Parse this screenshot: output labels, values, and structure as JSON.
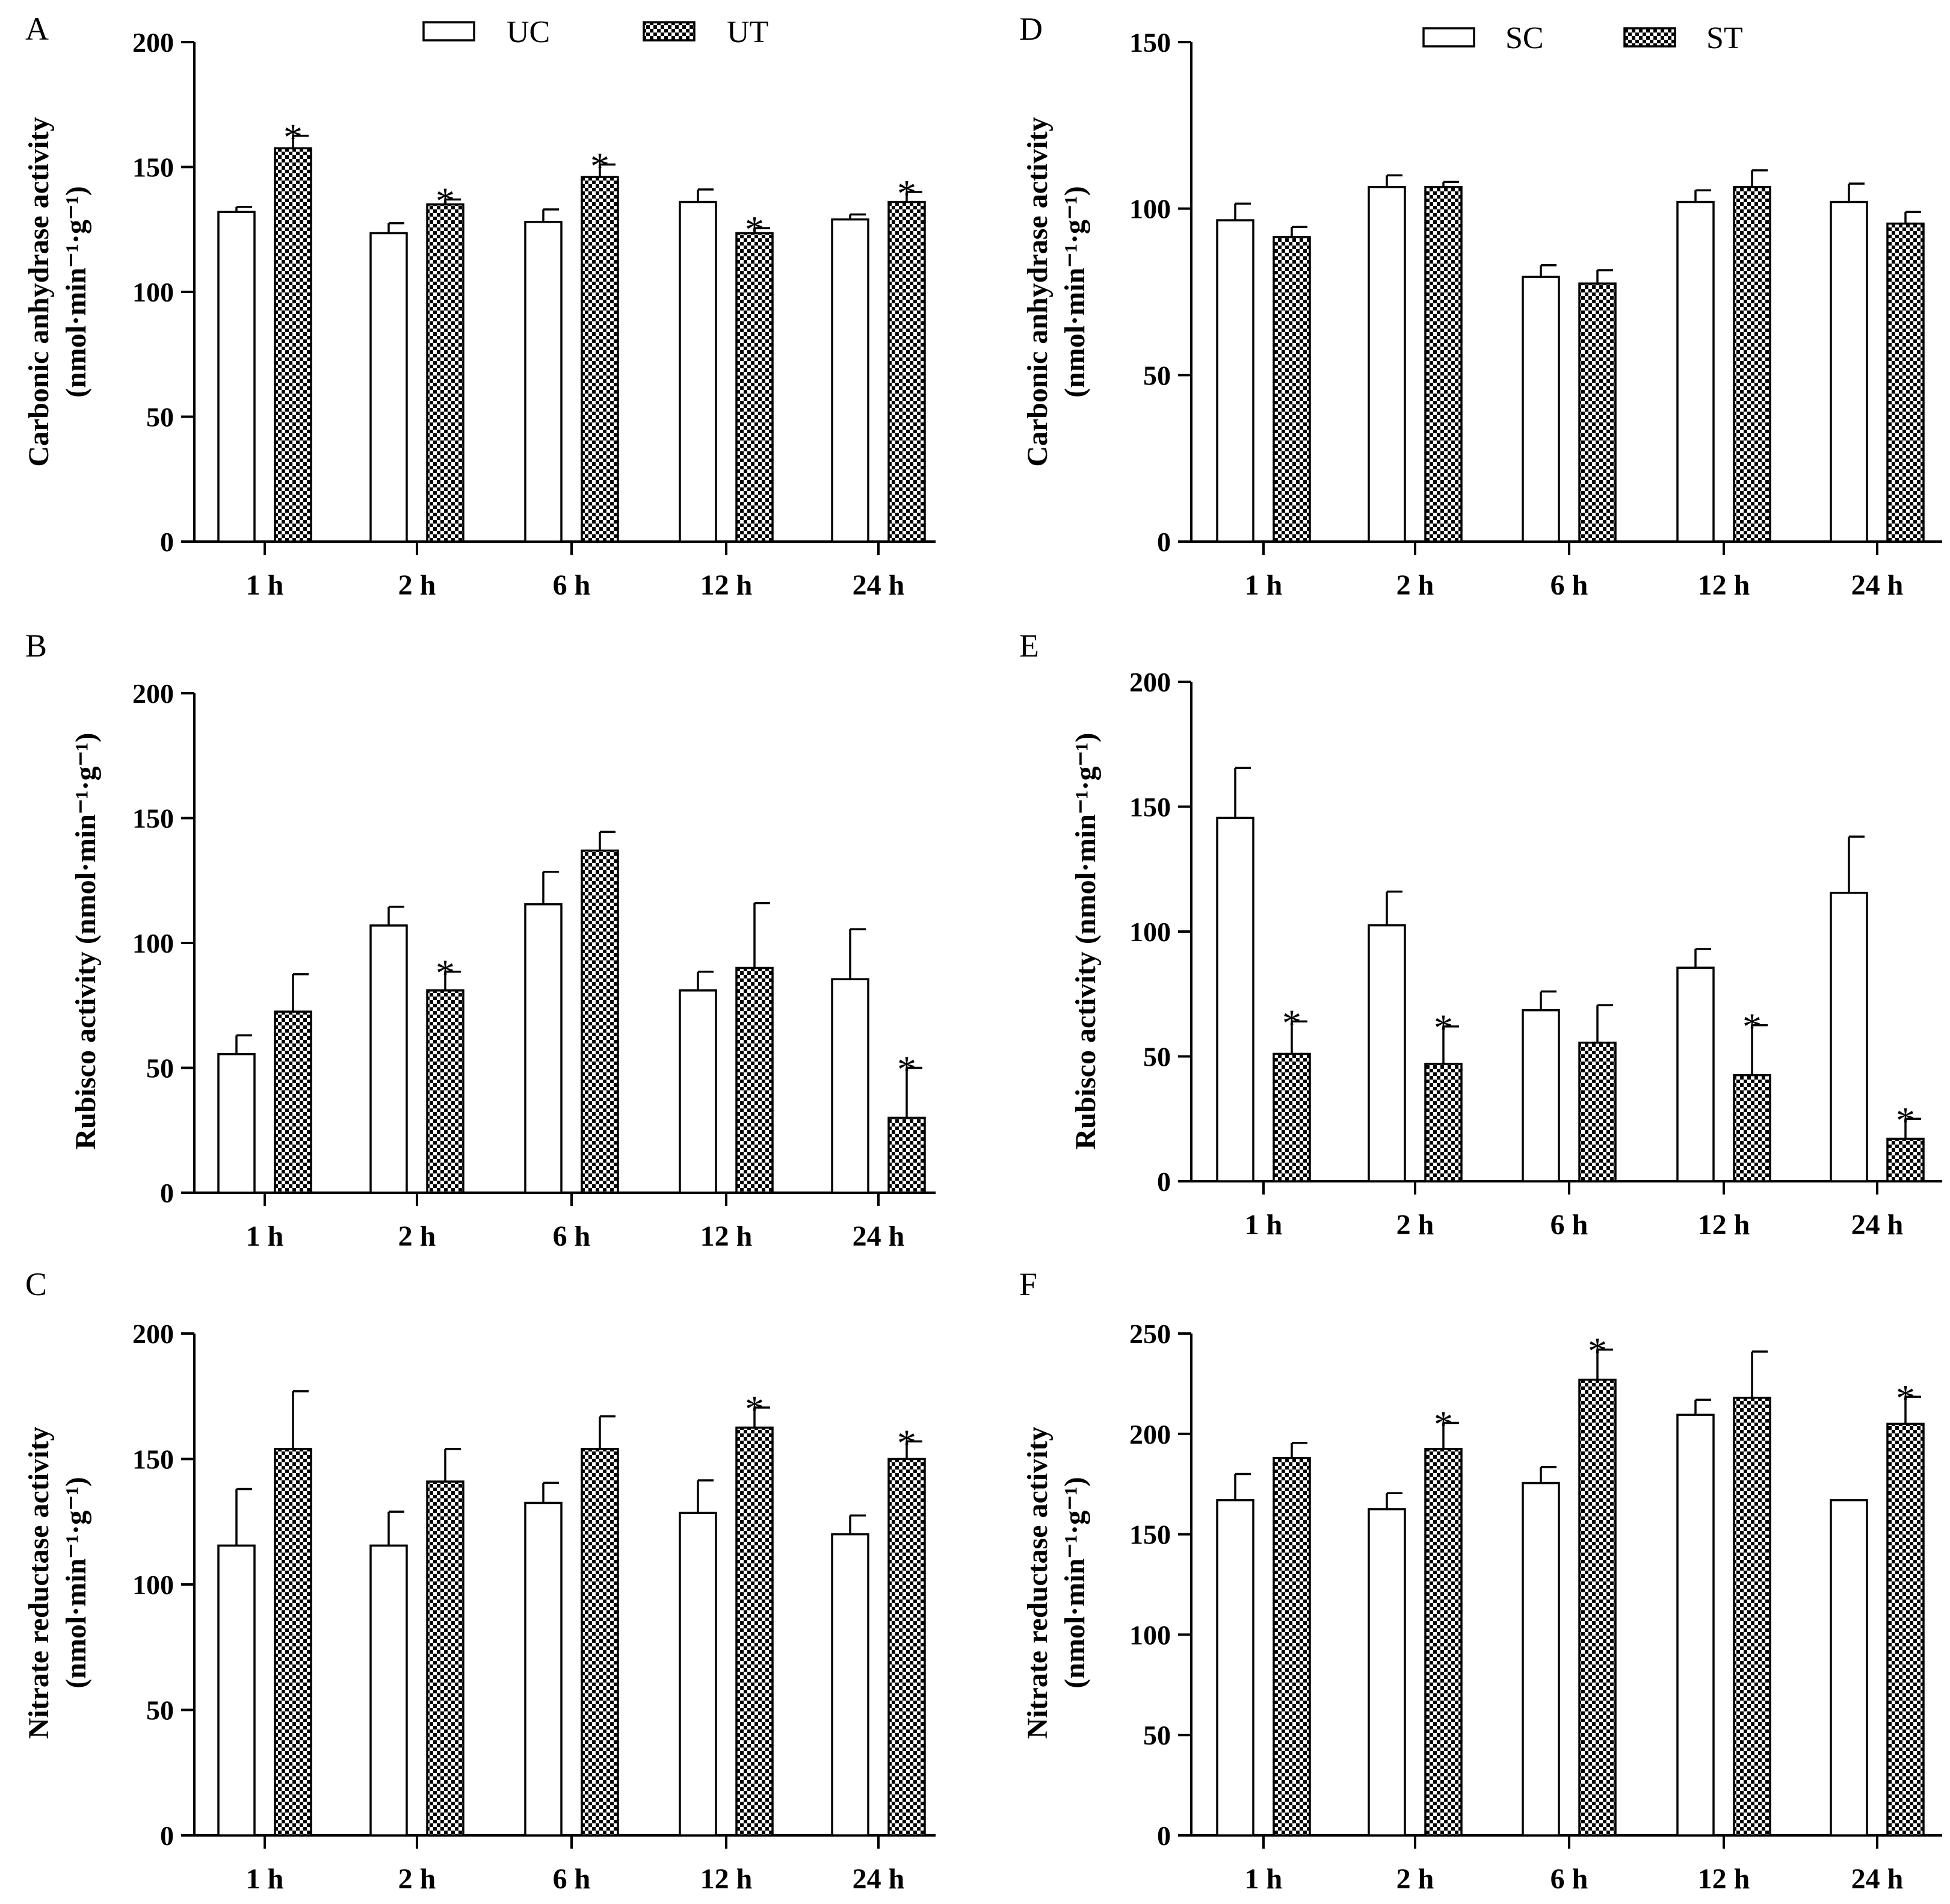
{
  "legend_left": {
    "control": "UC",
    "treatment": "UT"
  },
  "legend_right": {
    "control": "SC",
    "treatment": "ST"
  },
  "colors": {
    "control_fill": "#ffffff",
    "treatment_pattern": "checkered black/white",
    "stroke": "#000000"
  },
  "chart_data": [
    {
      "panel": "A",
      "type": "bar",
      "ylabel": [
        "Carbonic anhydrase activity",
        "(nmol·min⁻¹·g⁻¹)"
      ],
      "ylim": [
        0,
        200
      ],
      "yticks": [
        0,
        50,
        100,
        150,
        200
      ],
      "categories": [
        "1 h",
        "2 h",
        "6 h",
        "12 h",
        "24 h"
      ],
      "series": [
        {
          "name": "UC",
          "values": [
            132,
            123.5,
            128,
            136,
            129
          ],
          "errors": [
            2,
            4,
            5,
            5,
            2
          ],
          "significant": [
            false,
            false,
            false,
            false,
            false
          ]
        },
        {
          "name": "UT",
          "values": [
            157.5,
            135,
            146,
            123.5,
            136
          ],
          "errors": [
            5,
            2,
            5,
            2,
            4
          ],
          "significant": [
            true,
            true,
            true,
            true,
            true
          ]
        }
      ]
    },
    {
      "panel": "B",
      "type": "bar",
      "ylabel": [
        "Rubisco activity (nmol·min⁻¹·g⁻¹)"
      ],
      "ylim": [
        0,
        200
      ],
      "yticks": [
        0,
        50,
        100,
        150,
        200
      ],
      "categories": [
        "1 h",
        "2 h",
        "6 h",
        "12 h",
        "24 h"
      ],
      "series": [
        {
          "name": "UC",
          "values": [
            55.5,
            107,
            115.5,
            81,
            85.5
          ],
          "errors": [
            7.5,
            7.5,
            13,
            7.5,
            20
          ],
          "significant": [
            false,
            false,
            false,
            false,
            false
          ]
        },
        {
          "name": "UT",
          "values": [
            72.5,
            81,
            137,
            90,
            30
          ],
          "errors": [
            15,
            7.5,
            7.5,
            26,
            20
          ],
          "significant": [
            false,
            true,
            false,
            false,
            true
          ]
        }
      ]
    },
    {
      "panel": "C",
      "type": "bar",
      "ylabel": [
        "Nitrate reductase activity",
        "(nmol·min⁻¹·g⁻¹)"
      ],
      "ylim": [
        0,
        200
      ],
      "yticks": [
        0,
        50,
        100,
        150,
        200
      ],
      "categories": [
        "1 h",
        "2 h",
        "6 h",
        "12 h",
        "24 h"
      ],
      "series": [
        {
          "name": "UC",
          "values": [
            115.5,
            115.5,
            132.5,
            128.5,
            120
          ],
          "errors": [
            22.5,
            13.5,
            8,
            13,
            7.5
          ],
          "significant": [
            false,
            false,
            false,
            false,
            false
          ]
        },
        {
          "name": "UT",
          "values": [
            154,
            141,
            154,
            162.5,
            150
          ],
          "errors": [
            23,
            13,
            13,
            8,
            7
          ],
          "significant": [
            false,
            false,
            false,
            true,
            true
          ]
        }
      ]
    },
    {
      "panel": "D",
      "type": "bar",
      "ylabel": [
        "Carbonic anhydrase activity",
        "(nmol·min⁻¹·g⁻¹)"
      ],
      "ylim": [
        0,
        150
      ],
      "yticks": [
        0,
        50,
        100,
        150
      ],
      "categories": [
        "1 h",
        "2 h",
        "6 h",
        "12 h",
        "24 h"
      ],
      "series": [
        {
          "name": "SC",
          "values": [
            96.5,
            106.5,
            79.5,
            102,
            102
          ],
          "errors": [
            5,
            3.5,
            3.5,
            3.5,
            5.5
          ],
          "significant": [
            false,
            false,
            false,
            false,
            false
          ]
        },
        {
          "name": "ST",
          "values": [
            91.5,
            106.5,
            77.5,
            106.5,
            95.5
          ],
          "errors": [
            3,
            1.5,
            4,
            5,
            3.5
          ],
          "significant": [
            false,
            false,
            false,
            false,
            false
          ]
        }
      ]
    },
    {
      "panel": "E",
      "type": "bar",
      "ylabel": [
        "Rubisco activity (nmol·min⁻¹·g⁻¹)"
      ],
      "ylim": [
        0,
        200
      ],
      "yticks": [
        0,
        50,
        100,
        150,
        200
      ],
      "categories": [
        "1 h",
        "2 h",
        "6 h",
        "12 h",
        "24 h"
      ],
      "series": [
        {
          "name": "SC",
          "values": [
            145.5,
            102.5,
            68.5,
            85.5,
            115.5
          ],
          "errors": [
            20,
            13.5,
            7.5,
            7.5,
            22.5
          ],
          "significant": [
            false,
            false,
            false,
            false,
            false
          ]
        },
        {
          "name": "ST",
          "values": [
            51,
            47,
            55.5,
            42.5,
            17
          ],
          "errors": [
            13,
            15,
            15,
            20,
            8
          ],
          "significant": [
            true,
            true,
            false,
            true,
            true
          ]
        }
      ]
    },
    {
      "panel": "F",
      "type": "bar",
      "ylabel": [
        "Nitrate reductase activity",
        "(nmol·min⁻¹·g⁻¹)"
      ],
      "ylim": [
        0,
        250
      ],
      "yticks": [
        0,
        50,
        100,
        150,
        200,
        250
      ],
      "categories": [
        "1 h",
        "2 h",
        "6 h",
        "12 h",
        "24 h"
      ],
      "series": [
        {
          "name": "SC",
          "values": [
            167,
            162.5,
            175.5,
            209.5,
            167
          ],
          "errors": [
            13,
            8,
            8,
            7.5,
            0
          ],
          "significant": [
            false,
            false,
            false,
            false,
            false
          ]
        },
        {
          "name": "ST",
          "values": [
            188,
            192.5,
            227,
            218,
            205
          ],
          "errors": [
            7.5,
            13,
            15,
            23,
            13.5
          ],
          "significant": [
            false,
            true,
            true,
            false,
            true
          ]
        }
      ]
    }
  ]
}
